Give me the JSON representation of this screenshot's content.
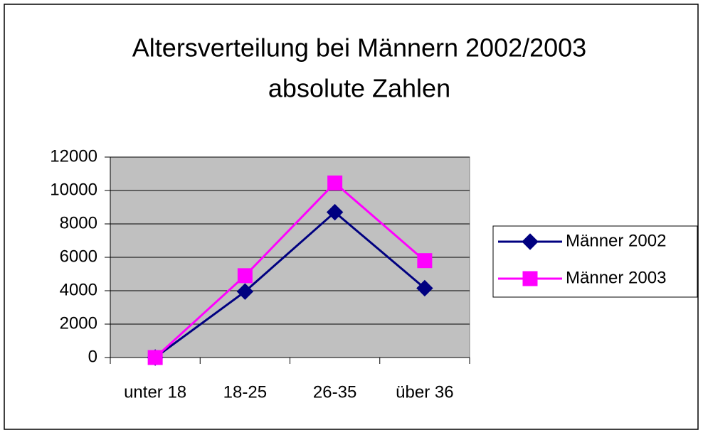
{
  "chart_data": {
    "type": "line",
    "title": "Altersverteilung bei Männern 2002/2003",
    "subtitle": "absolute Zahlen",
    "categories": [
      "unter 18",
      "18-25",
      "26-35",
      "über 36"
    ],
    "series": [
      {
        "name": "Männer 2002",
        "color": "#000080",
        "marker": "diamond",
        "values": [
          0,
          3950,
          8700,
          4150
        ]
      },
      {
        "name": "Männer 2003",
        "color": "#ff00ff",
        "marker": "square",
        "values": [
          0,
          4900,
          10450,
          5800
        ]
      }
    ],
    "ylim": [
      0,
      12000
    ],
    "yticks": [
      0,
      2000,
      4000,
      6000,
      8000,
      10000,
      12000
    ],
    "grid": true,
    "legend": "right",
    "plot_background": "#c0c0c0"
  }
}
